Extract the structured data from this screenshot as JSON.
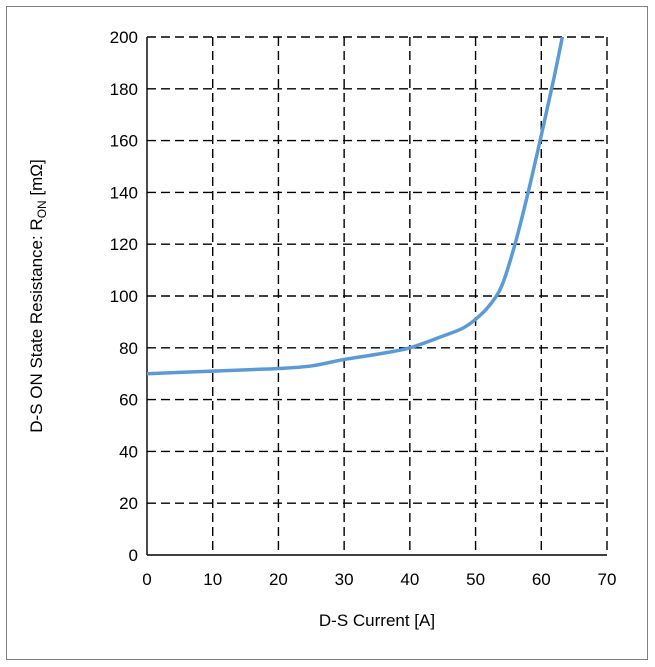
{
  "chart_data": {
    "type": "line",
    "title": "",
    "xlabel": "D-S Current [A]",
    "ylabel": {
      "prefix": "D-S ON State Resistance: R",
      "subscript": "ON",
      "suffix": " [mΩ]"
    },
    "xlim": [
      0,
      70
    ],
    "ylim": [
      0,
      200
    ],
    "xticks": [
      0,
      10,
      20,
      30,
      40,
      50,
      60,
      70
    ],
    "yticks": [
      0,
      20,
      40,
      60,
      80,
      100,
      120,
      140,
      160,
      180,
      200
    ],
    "grid": true,
    "grid_style": "dashed",
    "series": [
      {
        "color": "#5b9bd5",
        "x": [
          0,
          5,
          10,
          15,
          20,
          25,
          30,
          35,
          40,
          45,
          48,
          50,
          52,
          54,
          56,
          58,
          60,
          62,
          64,
          65
        ],
        "y": [
          70,
          70.5,
          71,
          71.5,
          72,
          73,
          75.5,
          77.5,
          80,
          84.5,
          87.5,
          91,
          96,
          104,
          120,
          140,
          162,
          185,
          210,
          222
        ]
      }
    ]
  }
}
